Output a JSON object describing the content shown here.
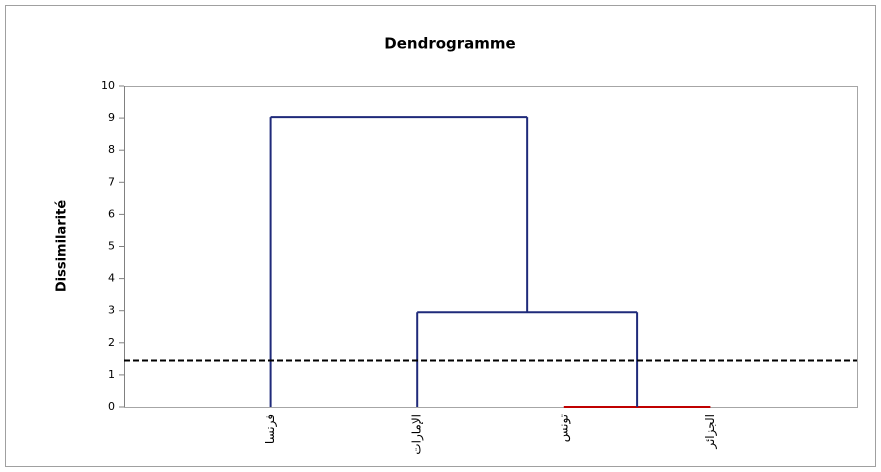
{
  "chart_data": {
    "type": "dendrogram",
    "title": "Dendrogramme",
    "y_label": "Dissimilarité",
    "categories": [
      "فرنسا",
      "الإمارات",
      "تونس",
      "الجزائر"
    ],
    "merges": [
      {
        "left": 2,
        "right": 3,
        "height": 0,
        "color": "#c00000"
      },
      {
        "left": 1,
        "right": 4,
        "height": 2.95,
        "color": "#1f2a7a"
      },
      {
        "left": 0,
        "right": 5,
        "height": 9.03,
        "color": "#1f2a7a"
      }
    ],
    "cutoff": 1.45,
    "ylim": [
      0,
      10
    ],
    "yticks": [
      0,
      1,
      2,
      3,
      4,
      5,
      6,
      7,
      8,
      9,
      10
    ]
  }
}
